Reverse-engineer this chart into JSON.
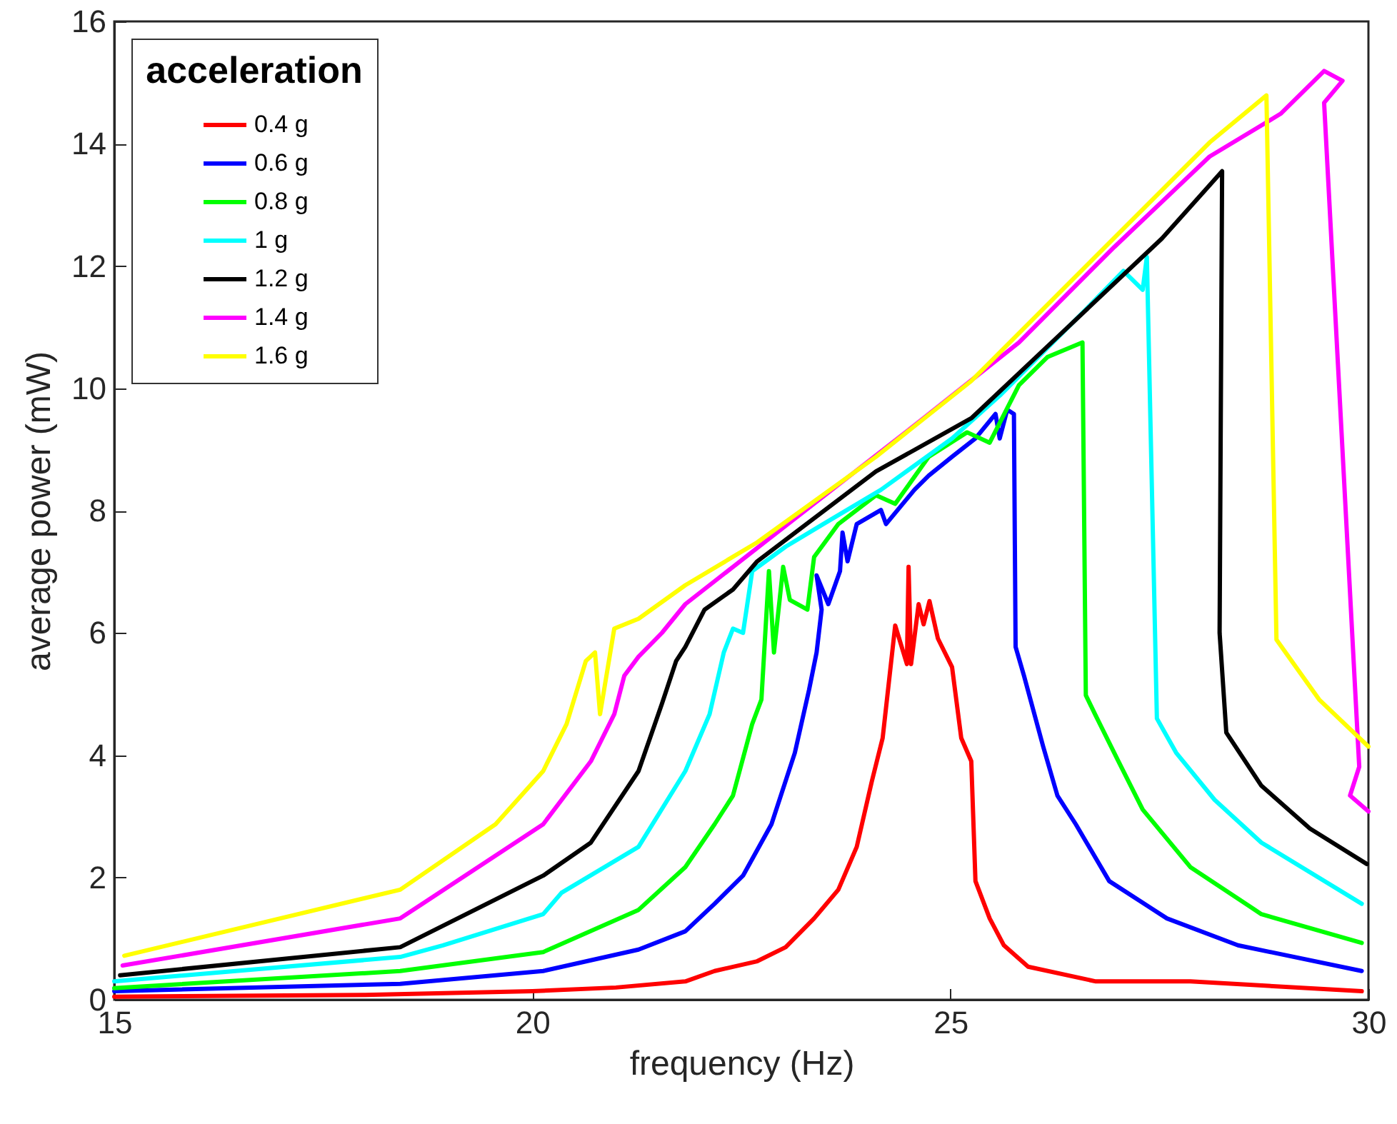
{
  "chart_data": {
    "type": "line",
    "xlabel": "frequency (Hz)",
    "ylabel": "average power (mW)",
    "legend_title": "acceleration",
    "legend": "top left",
    "xlim": [
      15,
      30
    ],
    "ylim": [
      0,
      16
    ],
    "xticks": [
      15,
      20,
      25,
      30
    ],
    "yticks": [
      0,
      2,
      4,
      6,
      8,
      10,
      12,
      14,
      16
    ],
    "series": [
      {
        "name": "0.4 g",
        "color": "#ff0000",
        "x": [
          15,
          18,
          20,
          21,
          21.83,
          22.18,
          22.69,
          23.03,
          23.37,
          23.66,
          23.88,
          24.06,
          24.19,
          24.34,
          24.48,
          24.5,
          24.53,
          24.62,
          24.68,
          24.75,
          24.85,
          25.02,
          25.13,
          25.25,
          25.3,
          25.47,
          25.64,
          25.93,
          26.74,
          27.87,
          29.92
        ],
        "values": [
          0.05,
          0.08,
          0.14,
          0.2,
          0.3,
          0.47,
          0.63,
          0.86,
          1.33,
          1.8,
          2.5,
          3.57,
          4.28,
          6.12,
          5.49,
          7.08,
          5.49,
          6.47,
          6.14,
          6.52,
          5.91,
          5.44,
          4.28,
          3.9,
          1.94,
          1.33,
          0.89,
          0.54,
          0.3,
          0.3,
          0.14
        ]
      },
      {
        "name": "0.6 g",
        "color": "#0000ff",
        "x": [
          15,
          18.42,
          20.13,
          21.27,
          21.83,
          22.18,
          22.52,
          22.86,
          23.14,
          23.31,
          23.4,
          23.46,
          23.4,
          23.54,
          23.68,
          23.71,
          23.77,
          23.88,
          24.17,
          24.23,
          24.57,
          24.74,
          25.02,
          25.3,
          25.54,
          25.59,
          25.68,
          25.76,
          25.78,
          25.88,
          26.11,
          26.28,
          26.5,
          26.9,
          27.59,
          28.44,
          29.92
        ],
        "values": [
          0.14,
          0.26,
          0.47,
          0.82,
          1.12,
          1.57,
          2.03,
          2.87,
          4.04,
          5.07,
          5.68,
          6.38,
          6.94,
          6.47,
          7.01,
          7.64,
          7.17,
          7.78,
          8.01,
          7.78,
          8.34,
          8.57,
          8.88,
          9.18,
          9.58,
          9.18,
          9.65,
          9.58,
          5.77,
          5.3,
          4.14,
          3.34,
          2.87,
          1.94,
          1.33,
          0.89,
          0.47
        ]
      },
      {
        "name": "0.8 g",
        "color": "#00ff00",
        "x": [
          15,
          18.42,
          20.13,
          21.27,
          21.83,
          22.18,
          22.4,
          22.63,
          22.74,
          22.83,
          22.89,
          23,
          23.08,
          23.29,
          23.37,
          23.66,
          24.11,
          24.34,
          24.74,
          25.2,
          25.47,
          25.82,
          26.16,
          26.58,
          26.62,
          26.73,
          27.01,
          27.3,
          27.87,
          28.72,
          29.92
        ],
        "values": [
          0.19,
          0.47,
          0.78,
          1.47,
          2.17,
          2.87,
          3.34,
          4.51,
          4.91,
          7.01,
          5.68,
          7.08,
          6.54,
          6.38,
          7.24,
          7.78,
          8.25,
          8.11,
          8.88,
          9.28,
          9.11,
          10.05,
          10.51,
          10.75,
          4.98,
          4.67,
          3.9,
          3.11,
          2.17,
          1.4,
          0.93
        ]
      },
      {
        "name": "1 g",
        "color": "#00ffff",
        "x": [
          15,
          18.42,
          18.93,
          20.13,
          20.35,
          21.27,
          21.83,
          22.12,
          22.29,
          22.4,
          22.52,
          22.63,
          23.03,
          23.48,
          24.17,
          25.02,
          25.59,
          26.62,
          27.07,
          27.3,
          27.35,
          27.47,
          27.7,
          28.16,
          28.72,
          29.92
        ],
        "values": [
          0.3,
          0.7,
          0.89,
          1.4,
          1.75,
          2.5,
          3.74,
          4.67,
          5.68,
          6.07,
          6,
          7.01,
          7.41,
          7.78,
          8.34,
          9.18,
          9.88,
          11.29,
          11.92,
          11.61,
          12.15,
          4.6,
          4.04,
          3.27,
          2.57,
          1.57
        ]
      },
      {
        "name": "1.2 g",
        "color": "#000000",
        "x": [
          15.07,
          18.42,
          20.13,
          20.7,
          21.27,
          21.55,
          21.72,
          21.83,
          22.06,
          22.4,
          22.69,
          24.11,
          25.25,
          26.39,
          27.53,
          28.25,
          28.22,
          28.3,
          28.72,
          29.3,
          29.98
        ],
        "values": [
          0.4,
          0.86,
          2.03,
          2.57,
          3.74,
          4.84,
          5.54,
          5.77,
          6.38,
          6.71,
          7.17,
          8.64,
          9.51,
          10.98,
          12.45,
          13.55,
          6,
          4.37,
          3.5,
          2.8,
          2.22
        ]
      },
      {
        "name": "1.4 g",
        "color": "#ff00ff",
        "x": [
          15.1,
          18.42,
          20.13,
          20.7,
          20.98,
          21.1,
          21.27,
          21.55,
          21.83,
          22.4,
          24.68,
          25.82,
          26.96,
          28.1,
          28.95,
          29.47,
          29.69,
          29.47,
          29.89,
          29.78,
          30
        ],
        "values": [
          0.56,
          1.33,
          2.87,
          3.9,
          4.67,
          5.3,
          5.61,
          6,
          6.47,
          7.08,
          9.51,
          10.75,
          12.31,
          13.79,
          14.49,
          15.19,
          15.03,
          14.67,
          3.81,
          3.34,
          3.08
        ]
      },
      {
        "name": "1.6 g",
        "color": "#ffff00",
        "x": [
          15.12,
          18.42,
          19.56,
          20.13,
          20.41,
          20.64,
          20.75,
          20.81,
          20.98,
          21.27,
          21.83,
          22.69,
          24.11,
          25.25,
          26.39,
          27.53,
          28.1,
          28.78,
          28.9,
          29.41,
          30
        ],
        "values": [
          0.72,
          1.8,
          2.87,
          3.74,
          4.51,
          5.54,
          5.68,
          4.67,
          6.07,
          6.23,
          6.78,
          7.48,
          8.88,
          10.12,
          11.68,
          13.24,
          14.02,
          14.79,
          5.89,
          4.91,
          4.14
        ]
      }
    ]
  }
}
